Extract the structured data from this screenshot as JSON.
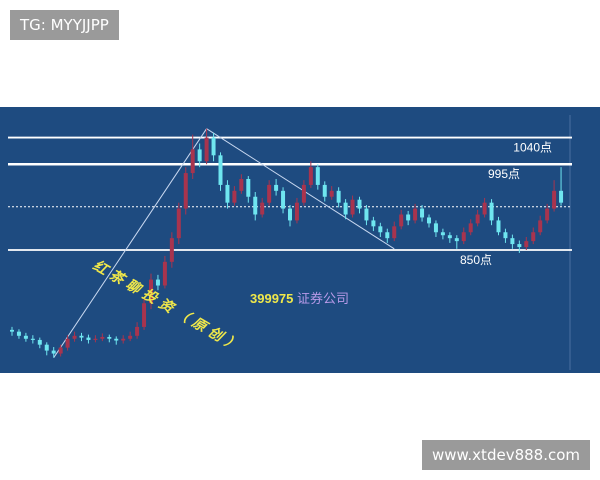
{
  "watermarks": {
    "top_left": "TG: MYYJJPP",
    "bottom_right": "www.xtdev888.com"
  },
  "colors": {
    "background": "#1e4b80",
    "up": "#a8344e",
    "down": "#6fe6f0",
    "level_line": "#ffffff",
    "trendline": "#c8d8f0",
    "annotation_yellow": "#f0e84a",
    "annotation_purple": "#b89ae8"
  },
  "chart_data": {
    "type": "candlestick",
    "title": "",
    "ylim": [
      650,
      1080
    ],
    "grid": false,
    "ohlc": [
      [
        715,
        720,
        705,
        712
      ],
      [
        712,
        716,
        700,
        705
      ],
      [
        705,
        710,
        695,
        700
      ],
      [
        700,
        706,
        692,
        698
      ],
      [
        698,
        702,
        684,
        690
      ],
      [
        690,
        694,
        672,
        680
      ],
      [
        680,
        686,
        668,
        675
      ],
      [
        675,
        690,
        670,
        685
      ],
      [
        685,
        706,
        680,
        700
      ],
      [
        700,
        712,
        695,
        705
      ],
      [
        705,
        710,
        696,
        702
      ],
      [
        702,
        707,
        692,
        698
      ],
      [
        698,
        706,
        694,
        700
      ],
      [
        700,
        709,
        696,
        703
      ],
      [
        703,
        707,
        694,
        700
      ],
      [
        700,
        704,
        690,
        697
      ],
      [
        697,
        706,
        692,
        700
      ],
      [
        700,
        712,
        696,
        705
      ],
      [
        705,
        728,
        700,
        720
      ],
      [
        720,
        770,
        715,
        760
      ],
      [
        760,
        810,
        750,
        800
      ],
      [
        800,
        808,
        782,
        790
      ],
      [
        790,
        840,
        785,
        830
      ],
      [
        830,
        880,
        820,
        870
      ],
      [
        870,
        930,
        860,
        920
      ],
      [
        920,
        990,
        910,
        980
      ],
      [
        980,
        1045,
        970,
        1020
      ],
      [
        1020,
        1030,
        990,
        1000
      ],
      [
        1000,
        1055,
        995,
        1040
      ],
      [
        1040,
        1048,
        1000,
        1010
      ],
      [
        1010,
        1015,
        950,
        960
      ],
      [
        960,
        968,
        920,
        930
      ],
      [
        930,
        958,
        925,
        950
      ],
      [
        950,
        978,
        945,
        970
      ],
      [
        970,
        975,
        930,
        940
      ],
      [
        940,
        948,
        900,
        910
      ],
      [
        910,
        938,
        905,
        930
      ],
      [
        930,
        968,
        925,
        960
      ],
      [
        960,
        970,
        942,
        950
      ],
      [
        950,
        956,
        912,
        920
      ],
      [
        920,
        926,
        890,
        900
      ],
      [
        900,
        938,
        895,
        930
      ],
      [
        930,
        968,
        925,
        960
      ],
      [
        960,
        1000,
        955,
        990
      ],
      [
        990,
        995,
        952,
        960
      ],
      [
        960,
        966,
        932,
        940
      ],
      [
        940,
        958,
        935,
        950
      ],
      [
        950,
        956,
        922,
        930
      ],
      [
        930,
        936,
        902,
        910
      ],
      [
        910,
        942,
        905,
        935
      ],
      [
        935,
        940,
        912,
        920
      ],
      [
        920,
        926,
        892,
        900
      ],
      [
        900,
        906,
        882,
        890
      ],
      [
        890,
        896,
        872,
        880
      ],
      [
        880,
        886,
        862,
        870
      ],
      [
        870,
        898,
        865,
        890
      ],
      [
        890,
        918,
        885,
        910
      ],
      [
        910,
        916,
        892,
        900
      ],
      [
        900,
        928,
        895,
        920
      ],
      [
        920,
        926,
        898,
        905
      ],
      [
        905,
        910,
        888,
        895
      ],
      [
        895,
        900,
        872,
        880
      ],
      [
        880,
        886,
        868,
        875
      ],
      [
        875,
        880,
        862,
        870
      ],
      [
        870,
        875,
        852,
        865
      ],
      [
        865,
        888,
        860,
        880
      ],
      [
        880,
        902,
        875,
        895
      ],
      [
        895,
        918,
        890,
        910
      ],
      [
        910,
        938,
        905,
        930
      ],
      [
        930,
        936,
        892,
        900
      ],
      [
        900,
        906,
        875,
        880
      ],
      [
        880,
        886,
        862,
        870
      ],
      [
        870,
        876,
        852,
        860
      ],
      [
        860,
        866,
        845,
        855
      ],
      [
        855,
        872,
        850,
        865
      ],
      [
        865,
        888,
        860,
        880
      ],
      [
        880,
        908,
        875,
        900
      ],
      [
        900,
        928,
        895,
        920
      ],
      [
        920,
        968,
        915,
        950
      ],
      [
        950,
        990,
        925,
        930
      ]
    ],
    "levels": [
      {
        "value": 1040,
        "label": "1040点"
      },
      {
        "value": 995,
        "label": "995点"
      },
      {
        "value": 850,
        "label": "850点"
      }
    ],
    "dotted_reference": 923,
    "trendlines": [
      {
        "from": [
          6,
          668
        ],
        "to": [
          28,
          1055
        ]
      },
      {
        "from": [
          28,
          1055
        ],
        "to": [
          55,
          852
        ]
      }
    ],
    "annotations": {
      "handwritten": "红茶聊投资（原创）",
      "code": "399975",
      "name": "证券公司"
    }
  }
}
